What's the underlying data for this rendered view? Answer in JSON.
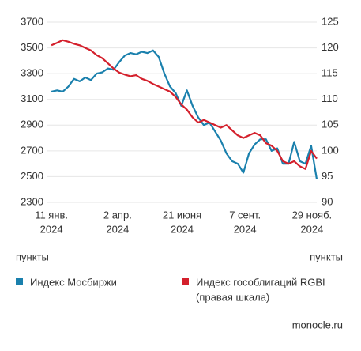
{
  "chart_data": {
    "type": "line",
    "x": [
      "2024-01-11",
      "2024-01-18",
      "2024-01-25",
      "2024-02-01",
      "2024-02-08",
      "2024-02-15",
      "2024-02-22",
      "2024-02-29",
      "2024-03-07",
      "2024-03-14",
      "2024-03-21",
      "2024-03-28",
      "2024-04-04",
      "2024-04-11",
      "2024-04-18",
      "2024-04-25",
      "2024-05-02",
      "2024-05-09",
      "2024-05-16",
      "2024-05-23",
      "2024-05-30",
      "2024-06-06",
      "2024-06-13",
      "2024-06-20",
      "2024-06-27",
      "2024-07-04",
      "2024-07-11",
      "2024-07-18",
      "2024-07-25",
      "2024-08-01",
      "2024-08-08",
      "2024-08-15",
      "2024-08-22",
      "2024-08-29",
      "2024-09-05",
      "2024-09-12",
      "2024-09-19",
      "2024-09-26",
      "2024-10-03",
      "2024-10-10",
      "2024-10-17",
      "2024-10-24",
      "2024-10-31",
      "2024-11-07",
      "2024-11-14",
      "2024-11-21",
      "2024-11-28",
      "2024-12-05"
    ],
    "series": [
      {
        "name": "Индекс Мосбиржи",
        "color": "#1a80ad",
        "values": [
          3160,
          3170,
          3160,
          3200,
          3260,
          3240,
          3270,
          3250,
          3300,
          3310,
          3340,
          3330,
          3390,
          3440,
          3460,
          3450,
          3470,
          3460,
          3480,
          3430,
          3300,
          3200,
          3150,
          3050,
          3170,
          3050,
          2960,
          2900,
          2920,
          2850,
          2780,
          2680,
          2620,
          2600,
          2530,
          2680,
          2750,
          2790,
          2790,
          2700,
          2720,
          2600,
          2600,
          2770,
          2620,
          2600,
          2740,
          2480
        ]
      },
      {
        "name": "Индекс гособлигаций RGBI",
        "color": "#d4202c",
        "axis": "y2",
        "values": [
          120.5,
          121,
          121.5,
          121.2,
          120.8,
          120.5,
          120,
          119.5,
          118.6,
          118,
          117,
          116,
          115.2,
          114.8,
          114.5,
          114.7,
          114,
          113.6,
          113,
          112.5,
          112,
          111.5,
          110.5,
          109,
          108,
          106.5,
          105.5,
          106,
          105.5,
          105,
          104.5,
          105,
          104,
          103,
          102.5,
          103,
          103.5,
          103,
          101.5,
          101,
          100,
          98,
          97.5,
          98,
          97,
          96.5,
          100,
          98.5
        ]
      }
    ],
    "legend_note": "(правая шкала)",
    "xlim": [
      "2024-01-05",
      "2024-12-05"
    ],
    "xticks": [
      {
        "value": "2024-01-11",
        "label": [
          "11 янв.",
          "2024"
        ]
      },
      {
        "value": "2024-04-02",
        "label": [
          "2 апр.",
          "2024"
        ]
      },
      {
        "value": "2024-06-21",
        "label": [
          "21 июня",
          "2024"
        ]
      },
      {
        "value": "2024-09-07",
        "label": [
          "7 сент.",
          "2024"
        ]
      },
      {
        "value": "2024-11-29",
        "label": [
          "29 нояб.",
          "2024"
        ]
      }
    ],
    "ylim": [
      2300,
      3700
    ],
    "yticks": [
      2300,
      2500,
      2700,
      2900,
      3100,
      3300,
      3500,
      3700
    ],
    "y2lim": [
      90,
      125
    ],
    "y2ticks": [
      90,
      95,
      100,
      105,
      110,
      115,
      120,
      125
    ],
    "ylabel": "пункты",
    "y2label": "пункты",
    "grid": true,
    "source": "monocle.ru"
  }
}
